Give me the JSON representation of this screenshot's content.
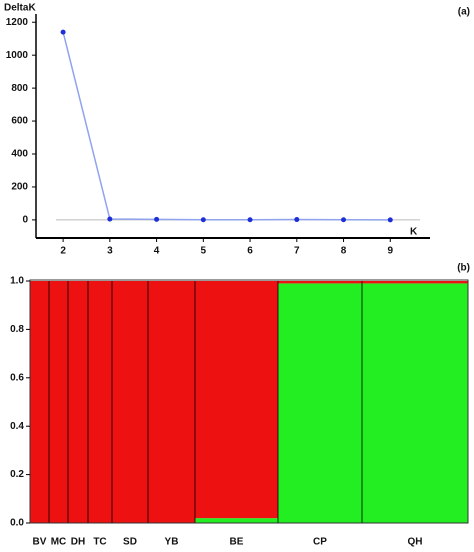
{
  "chart_data": [
    {
      "type": "line",
      "panel": "(a)",
      "y_label": "DeltaK",
      "x_label": "K",
      "x": [
        2,
        3,
        4,
        5,
        6,
        7,
        8,
        9
      ],
      "values": [
        1140,
        5,
        3,
        1,
        1,
        2,
        1,
        0
      ],
      "line_color": "#8fa3ee",
      "marker_color": "#1f2fd8",
      "xlim": [
        1.42,
        9.85
      ],
      "xticks": [
        2,
        3,
        4,
        5,
        6,
        7,
        8,
        9
      ],
      "ylim": [
        -110,
        1250
      ],
      "yticks": [
        0,
        200,
        400,
        600,
        800,
        1000,
        1200
      ],
      "zero_line": true
    },
    {
      "type": "structure",
      "panel": "(b)",
      "categories": [
        "BV",
        "MC",
        "DH",
        "TC",
        "SD",
        "YB",
        "BE",
        "CP",
        "QH"
      ],
      "sample_sizes": [
        19,
        19,
        20,
        24,
        36,
        47,
        83,
        84,
        106
      ],
      "series": [
        {
          "color": "#22ee22",
          "values": [
            0,
            0,
            0,
            0,
            0,
            0,
            0.02,
            0.99,
            0.99
          ]
        },
        {
          "color": "#ee1111",
          "values": [
            1,
            1,
            1,
            1,
            1,
            1,
            0.98,
            0.01,
            0.01
          ]
        }
      ],
      "ylim": [
        0,
        1
      ],
      "yticks": [
        {
          "value": 0,
          "label": "0.0"
        },
        {
          "value": 0.2,
          "label": "0.2"
        },
        {
          "value": 0.4,
          "label": "0.4"
        },
        {
          "value": 0.6,
          "label": "0.6"
        },
        {
          "value": 0.8,
          "label": "0.8"
        },
        {
          "value": 1,
          "label": "1.0"
        }
      ]
    }
  ]
}
